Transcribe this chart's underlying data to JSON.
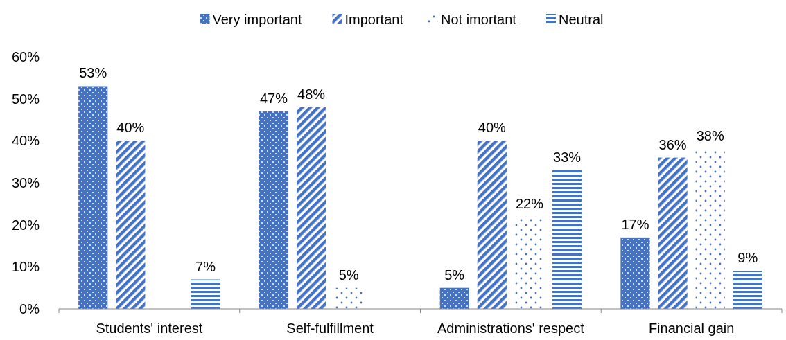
{
  "chart_data": {
    "type": "bar",
    "categories": [
      "Students' interest",
      "Self-fulfillment",
      "Administrations' respect",
      "Financial gain"
    ],
    "series": [
      {
        "name": "Very important",
        "color": "#4472c4",
        "values": [
          53,
          47,
          5,
          17
        ],
        "value_labels": [
          "53%",
          "47%",
          "5%",
          "17%"
        ]
      },
      {
        "name": "Important",
        "color": "#4472c4",
        "values": [
          40,
          48,
          40,
          36
        ],
        "value_labels": [
          "40%",
          "48%",
          "40%",
          "36%"
        ]
      },
      {
        "name": "Not imortant",
        "color": "#4472c4",
        "values": [
          null,
          5,
          22,
          38
        ],
        "value_labels": [
          null,
          "5%",
          "22%",
          "38%"
        ]
      },
      {
        "name": "Neutral",
        "color": "#4472c4",
        "values": [
          7,
          null,
          33,
          9
        ],
        "value_labels": [
          "7%",
          null,
          "33%",
          "9%"
        ]
      }
    ],
    "ylim": [
      0,
      60
    ],
    "yticks": [
      {
        "value": 0,
        "label": "0%"
      },
      {
        "value": 10,
        "label": "10%"
      },
      {
        "value": 20,
        "label": "20%"
      },
      {
        "value": 30,
        "label": "30%"
      },
      {
        "value": 40,
        "label": "40%"
      },
      {
        "value": 50,
        "label": "50%"
      },
      {
        "value": 60,
        "label": "60%"
      }
    ],
    "legend": "top",
    "grid": false
  }
}
